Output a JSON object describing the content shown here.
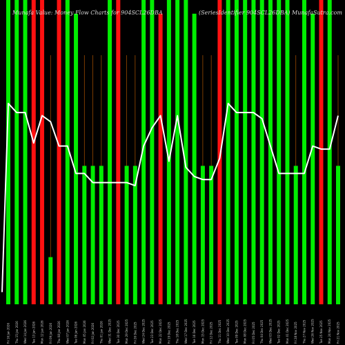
{
  "chart_data": {
    "type": "bar",
    "title_left": "Munafa Value: Money Flow Charts for 904SCL26DBA",
    "title_right": "(SeriesIdentifier 904SCL26DBA) MunafaSutra.com",
    "colors": {
      "up": "#00ee00",
      "down": "#ff1111",
      "vline": "#9a4a00",
      "line": "#ffffff",
      "bg": "#000000"
    },
    "ylim": [
      0,
      100
    ],
    "bars": [
      {
        "value": 100,
        "color": "up"
      },
      {
        "value": 100,
        "color": "up"
      },
      {
        "value": 100,
        "color": "up"
      },
      {
        "value": 100,
        "color": "down"
      },
      {
        "value": 100,
        "color": "down"
      },
      {
        "value": 15.5,
        "color": "up"
      },
      {
        "value": 100,
        "color": "down"
      },
      {
        "value": 100,
        "color": "up"
      },
      {
        "value": 95.5,
        "color": "up"
      },
      {
        "value": 45.5,
        "color": "up"
      },
      {
        "value": 45.5,
        "color": "up"
      },
      {
        "value": 45.5,
        "color": "up"
      },
      {
        "value": 100,
        "color": "up"
      },
      {
        "value": 100,
        "color": "down"
      },
      {
        "value": 45.5,
        "color": "up"
      },
      {
        "value": 45.5,
        "color": "up"
      },
      {
        "value": 100,
        "color": "up"
      },
      {
        "value": 100,
        "color": "up"
      },
      {
        "value": 95.5,
        "color": "down"
      },
      {
        "value": 100,
        "color": "up"
      },
      {
        "value": 100,
        "color": "up"
      },
      {
        "value": 100,
        "color": "up"
      },
      {
        "value": 95.5,
        "color": "up"
      },
      {
        "value": 45.5,
        "color": "up"
      },
      {
        "value": 45.5,
        "color": "up"
      },
      {
        "value": 100,
        "color": "down"
      },
      {
        "value": 100,
        "color": "up"
      },
      {
        "value": 100,
        "color": "up"
      },
      {
        "value": 100,
        "color": "up"
      },
      {
        "value": 100,
        "color": "up"
      },
      {
        "value": 100,
        "color": "up"
      },
      {
        "value": 100,
        "color": "up"
      },
      {
        "value": 100,
        "color": "up"
      },
      {
        "value": 100,
        "color": "up"
      },
      {
        "value": 45.5,
        "color": "up"
      },
      {
        "value": 100,
        "color": "up"
      },
      {
        "value": 95.5,
        "color": "up"
      },
      {
        "value": 100,
        "color": "down"
      },
      {
        "value": 100,
        "color": "up"
      },
      {
        "value": 45.5,
        "color": "up"
      }
    ],
    "line": [
      66,
      63,
      63,
      53,
      62,
      60,
      52,
      52,
      43,
      43,
      40,
      40,
      40,
      40,
      40,
      39,
      52,
      58,
      62,
      47,
      62,
      45,
      42,
      41,
      41,
      48,
      66,
      63,
      63,
      63,
      61,
      52,
      43,
      43,
      43,
      43,
      52,
      51,
      51,
      62
    ],
    "xlabels": [
      "Fri 16 Jan 2026",
      "Thu 15 Jan 2026",
      "Wed 14 Jan 2026",
      "Tue 13 Jan 2026",
      "Mon 12 Jan 2026",
      "Fri 09 Jan 2026",
      "Thu 08 Jan 2026",
      "Wed 07 Jan 2026",
      "Tue 06 Jan 2026",
      "Mon 05 Jan 2026",
      "Fri 02 Jan 2026",
      "Thu 01 Jan 2026",
      "Wed 31 Dec 2025",
      "Tue 30 Dec 2025",
      "Mon 29 Dec 2025",
      "Fri 26 Dec 2025",
      "Wed 24 Dec 2025",
      "Tue 23 Dec 2025",
      "Mon 22 Dec 2025",
      "Fri 19 Dec 2025",
      "Thu 18 Dec 2025",
      "Wed 17 Dec 2025",
      "Tue 16 Dec 2025",
      "Mon 15 Dec 2025",
      "Fri 12 Dec 2025",
      "Thu 11 Dec 2025",
      "Wed 10 Dec 2025",
      "Tue 09 Dec 2025",
      "Mon 08 Dec 2025",
      "Fri 05 Dec 2025",
      "Thu 04 Dec 2025",
      "Wed 03 Dec 2025",
      "Tue 02 Dec 2025",
      "Mon 01 Dec 2025",
      "Fri 28 Nov 2025",
      "Thu 27 Nov 2025",
      "Wed 26 Nov 2025",
      "Tue 25 Nov 2025",
      "Mon 24 Nov 2025",
      "Fri 21 Nov 2025"
    ]
  }
}
